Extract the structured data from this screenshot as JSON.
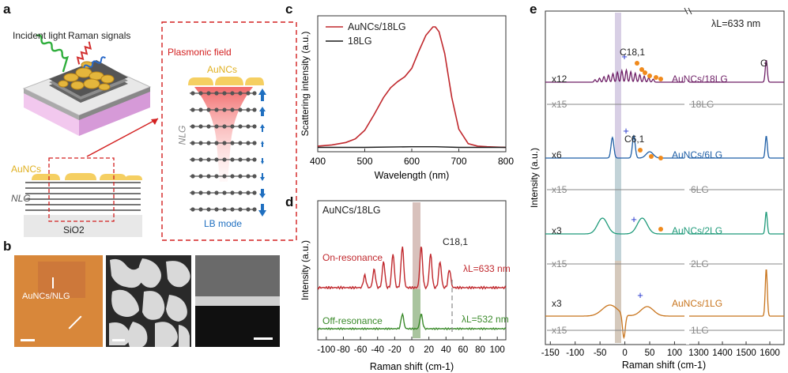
{
  "panels": {
    "a": "a",
    "b": "b",
    "c": "c",
    "d": "d",
    "e": "e"
  },
  "panel_a": {
    "incident_light": "Incident light",
    "raman_signals": "Raman signals",
    "aunc_top": "AuNCs",
    "aunc_side": "AuNCs",
    "nlg_side": "NLG",
    "substrate": "SiO2",
    "plasmonic_field": "Plasmonic field",
    "aunc_inset": "AuNCs",
    "nlg_inset": "NLG",
    "lb_mode": "LB mode"
  },
  "panel_b": {
    "label": "AuNCs/NLG"
  },
  "colors": {
    "aunc_18lg": "#c0282d",
    "lg18": "#1a1a1a",
    "on_res": "#c0282d",
    "off_res": "#3a8a2a",
    "e_18": "#6e1f66",
    "e_6": "#1f5fa6",
    "e_2": "#1f9a7a",
    "e_1": "#c8741c",
    "gray": "#888888",
    "dot": "#f08a1c",
    "plus": "#2233cc"
  },
  "chart_data": [
    {
      "type": "line",
      "panel": "c",
      "xlabel": "Wavelength (nm)",
      "ylabel": "Scattering intensity (a.u.)",
      "xlim": [
        400,
        800
      ],
      "xticks": [
        400,
        500,
        600,
        700,
        800
      ],
      "legend": [
        "AuNCs/18LG",
        "18LG"
      ],
      "series": [
        {
          "name": "AuNCs/18LG",
          "x": [
            400,
            430,
            460,
            480,
            500,
            520,
            540,
            555,
            570,
            585,
            600,
            615,
            630,
            645,
            650,
            658,
            670,
            685,
            700,
            720,
            740,
            760,
            800
          ],
          "y": [
            0.02,
            0.03,
            0.05,
            0.08,
            0.15,
            0.28,
            0.42,
            0.5,
            0.55,
            0.59,
            0.66,
            0.8,
            0.93,
            1.0,
            1.0,
            0.96,
            0.78,
            0.42,
            0.16,
            0.04,
            0.02,
            0.015,
            0.01
          ]
        },
        {
          "name": "18LG",
          "x": [
            400,
            500,
            600,
            650,
            700,
            800
          ],
          "y": [
            0.01,
            0.01,
            0.015,
            0.015,
            0.01,
            0.01
          ]
        }
      ]
    },
    {
      "type": "line",
      "panel": "d",
      "title": "AuNCs/18LG",
      "xlabel": "Raman shift (cm-1)",
      "ylabel": "Intensity (a.u.)",
      "xlim": [
        -110,
        110
      ],
      "xticks": [
        -100,
        -80,
        -60,
        -40,
        -20,
        0,
        20,
        40,
        60,
        80,
        100
      ],
      "annotation": "C18,1",
      "series": [
        {
          "name": "On-resonance",
          "label": "λL=633 nm",
          "peaks": [
            -44,
            -33,
            -22,
            -11,
            11,
            22,
            33,
            44
          ]
        },
        {
          "name": "Off-resonance",
          "label": "λL=532 nm",
          "peaks": [
            -11,
            11
          ]
        }
      ]
    },
    {
      "type": "line",
      "panel": "e",
      "xlabel": "Raman shift (cm-1)",
      "ylabel": "Intensity (a.u.)",
      "laser": "λL=633 nm",
      "xticks_left": [
        -150,
        -100,
        -50,
        0,
        50,
        100
      ],
      "xticks_right": [
        1300,
        1400,
        1500,
        1600
      ],
      "G_label": "G",
      "series": [
        {
          "name": "AuNCs/18LG",
          "scale": "x12",
          "ref": "18LG",
          "ref_scale": "x15",
          "annotation": "C18,1"
        },
        {
          "name": "AuNCs/6LG",
          "scale": "x6",
          "ref": "6LG",
          "ref_scale": "x15",
          "annotation": "C6,1"
        },
        {
          "name": "AuNCs/2LG",
          "scale": "x3",
          "ref": "2LG",
          "ref_scale": "x15"
        },
        {
          "name": "AuNCs/1LG",
          "scale": "x3",
          "ref": "1LG",
          "ref_scale": "x15"
        }
      ]
    }
  ]
}
